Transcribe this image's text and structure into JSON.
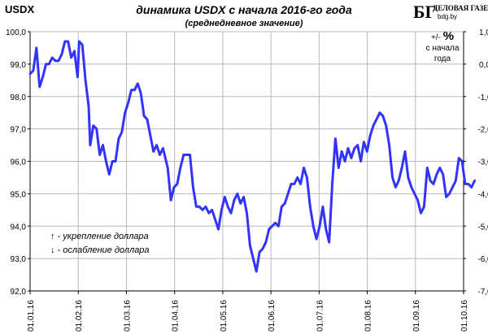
{
  "chart_data": {
    "type": "line",
    "ticker": "USDX",
    "title": "динамика  USDX с начала 2016-го года",
    "subtitle": "(среднедневное значение)",
    "ylabel_right": [
      "+/-",
      "%",
      "с начала",
      "года"
    ],
    "ylim": [
      92.0,
      100.0
    ],
    "ylim_right": [
      -7.0,
      1.0
    ],
    "yticks": [
      "92,0",
      "93,0",
      "94,0",
      "95,0",
      "96,0",
      "97,0",
      "98,0",
      "99,0",
      "100,0"
    ],
    "yticks_right": [
      "-7,0",
      "-6,0",
      "-5,0",
      "-4,0",
      "-3,0",
      "-2,0",
      "-1,0",
      "0,0",
      "1,0"
    ],
    "xticks": [
      "01.01.16",
      "01.02.16",
      "01.03.16",
      "01.04.16",
      "01.05.16",
      "01.06.16",
      "01.07.16",
      "01.08.16",
      "01.09.16",
      "01.10.16"
    ],
    "legend": [
      "↑ - укрепление доллара",
      "↓ - ослабление доллара"
    ],
    "grid": true,
    "line_color": "#3333ff",
    "series": [
      {
        "points": [
          [
            "2016-01-01",
            98.7
          ],
          [
            "2016-01-03",
            98.8
          ],
          [
            "2016-01-05",
            99.5
          ],
          [
            "2016-01-07",
            98.3
          ],
          [
            "2016-01-09",
            98.6
          ],
          [
            "2016-01-11",
            99.0
          ],
          [
            "2016-01-13",
            99.0
          ],
          [
            "2016-01-15",
            99.2
          ],
          [
            "2016-01-17",
            99.1
          ],
          [
            "2016-01-19",
            99.1
          ],
          [
            "2016-01-21",
            99.3
          ],
          [
            "2016-01-23",
            99.7
          ],
          [
            "2016-01-25",
            99.7
          ],
          [
            "2016-01-27",
            99.2
          ],
          [
            "2016-01-29",
            99.4
          ],
          [
            "2016-01-31",
            98.6
          ],
          [
            "2016-02-01",
            99.7
          ],
          [
            "2016-02-03",
            99.6
          ],
          [
            "2016-02-05",
            98.5
          ],
          [
            "2016-02-07",
            97.7
          ],
          [
            "2016-02-08",
            96.5
          ],
          [
            "2016-02-10",
            97.1
          ],
          [
            "2016-02-12",
            97.0
          ],
          [
            "2016-02-14",
            96.2
          ],
          [
            "2016-02-16",
            96.5
          ],
          [
            "2016-02-18",
            96.0
          ],
          [
            "2016-02-20",
            95.6
          ],
          [
            "2016-02-22",
            96.0
          ],
          [
            "2016-02-24",
            96.0
          ],
          [
            "2016-02-26",
            96.7
          ],
          [
            "2016-02-28",
            96.9
          ],
          [
            "2016-03-01",
            97.5
          ],
          [
            "2016-03-03",
            97.8
          ],
          [
            "2016-03-05",
            98.2
          ],
          [
            "2016-03-07",
            98.2
          ],
          [
            "2016-03-09",
            98.4
          ],
          [
            "2016-03-11",
            98.1
          ],
          [
            "2016-03-13",
            97.4
          ],
          [
            "2016-03-15",
            97.3
          ],
          [
            "2016-03-17",
            96.8
          ],
          [
            "2016-03-19",
            96.3
          ],
          [
            "2016-03-21",
            96.5
          ],
          [
            "2016-03-23",
            96.2
          ],
          [
            "2016-03-25",
            96.4
          ],
          [
            "2016-03-28",
            95.8
          ],
          [
            "2016-03-30",
            94.8
          ],
          [
            "2016-04-01",
            95.2
          ],
          [
            "2016-04-03",
            95.3
          ],
          [
            "2016-04-05",
            95.8
          ],
          [
            "2016-04-07",
            96.2
          ],
          [
            "2016-04-09",
            96.2
          ],
          [
            "2016-04-11",
            96.2
          ],
          [
            "2016-04-13",
            95.2
          ],
          [
            "2016-04-15",
            94.6
          ],
          [
            "2016-04-17",
            94.6
          ],
          [
            "2016-04-19",
            94.5
          ],
          [
            "2016-04-21",
            94.6
          ],
          [
            "2016-04-23",
            94.4
          ],
          [
            "2016-04-25",
            94.5
          ],
          [
            "2016-04-27",
            94.2
          ],
          [
            "2016-04-29",
            93.9
          ],
          [
            "2016-05-01",
            94.5
          ],
          [
            "2016-05-03",
            94.9
          ],
          [
            "2016-05-05",
            94.6
          ],
          [
            "2016-05-07",
            94.4
          ],
          [
            "2016-05-09",
            94.8
          ],
          [
            "2016-05-11",
            95.0
          ],
          [
            "2016-05-13",
            94.7
          ],
          [
            "2016-05-15",
            94.9
          ],
          [
            "2016-05-17",
            94.4
          ],
          [
            "2016-05-19",
            93.4
          ],
          [
            "2016-05-21",
            93.0
          ],
          [
            "2016-05-23",
            92.6
          ],
          [
            "2016-05-25",
            93.2
          ],
          [
            "2016-05-27",
            93.3
          ],
          [
            "2016-05-29",
            93.5
          ],
          [
            "2016-05-31",
            93.9
          ],
          [
            "2016-06-02",
            94.0
          ],
          [
            "2016-06-04",
            94.1
          ],
          [
            "2016-06-06",
            94.0
          ],
          [
            "2016-06-08",
            94.6
          ],
          [
            "2016-06-10",
            94.7
          ],
          [
            "2016-06-12",
            95.0
          ],
          [
            "2016-06-14",
            95.3
          ],
          [
            "2016-06-16",
            95.3
          ],
          [
            "2016-06-18",
            95.5
          ],
          [
            "2016-06-20",
            95.3
          ],
          [
            "2016-06-22",
            95.8
          ],
          [
            "2016-06-24",
            95.5
          ],
          [
            "2016-06-26",
            94.6
          ],
          [
            "2016-06-28",
            94.0
          ],
          [
            "2016-06-30",
            93.6
          ],
          [
            "2016-07-02",
            94.0
          ],
          [
            "2016-07-04",
            94.6
          ],
          [
            "2016-07-06",
            93.9
          ],
          [
            "2016-07-08",
            93.5
          ],
          [
            "2016-07-10",
            95.3
          ],
          [
            "2016-07-12",
            96.7
          ],
          [
            "2016-07-14",
            95.8
          ],
          [
            "2016-07-16",
            96.3
          ],
          [
            "2016-07-18",
            96.0
          ],
          [
            "2016-07-20",
            96.4
          ],
          [
            "2016-07-22",
            96.1
          ],
          [
            "2016-07-24",
            96.4
          ],
          [
            "2016-07-26",
            96.5
          ],
          [
            "2016-07-28",
            96.0
          ],
          [
            "2016-07-30",
            96.6
          ],
          [
            "2016-08-01",
            96.3
          ],
          [
            "2016-08-03",
            96.8
          ],
          [
            "2016-08-05",
            97.1
          ],
          [
            "2016-08-07",
            97.3
          ],
          [
            "2016-08-09",
            97.5
          ],
          [
            "2016-08-11",
            97.4
          ],
          [
            "2016-08-13",
            97.1
          ],
          [
            "2016-08-15",
            96.5
          ],
          [
            "2016-08-17",
            95.5
          ],
          [
            "2016-08-19",
            95.2
          ],
          [
            "2016-08-21",
            95.4
          ],
          [
            "2016-08-23",
            95.8
          ],
          [
            "2016-08-25",
            96.3
          ],
          [
            "2016-08-27",
            95.5
          ],
          [
            "2016-08-29",
            95.2
          ],
          [
            "2016-08-31",
            95.0
          ],
          [
            "2016-09-02",
            94.8
          ],
          [
            "2016-09-04",
            94.4
          ],
          [
            "2016-09-06",
            94.6
          ],
          [
            "2016-09-08",
            95.8
          ],
          [
            "2016-09-10",
            95.4
          ],
          [
            "2016-09-12",
            95.3
          ],
          [
            "2016-09-14",
            95.6
          ],
          [
            "2016-09-16",
            95.8
          ],
          [
            "2016-09-18",
            95.6
          ],
          [
            "2016-09-20",
            94.9
          ],
          [
            "2016-09-22",
            95.0
          ],
          [
            "2016-09-24",
            95.2
          ],
          [
            "2016-09-26",
            95.4
          ],
          [
            "2016-09-28",
            96.1
          ],
          [
            "2016-09-30",
            96.0
          ],
          [
            "2016-10-02",
            95.3
          ],
          [
            "2016-10-04",
            95.3
          ],
          [
            "2016-10-06",
            95.2
          ],
          [
            "2016-10-08",
            95.4
          ]
        ]
      }
    ]
  },
  "logo": {
    "mark": "БГ",
    "name": "ДЕЛОВАЯ ГАЗЕТА",
    "url": "bdg.by"
  }
}
